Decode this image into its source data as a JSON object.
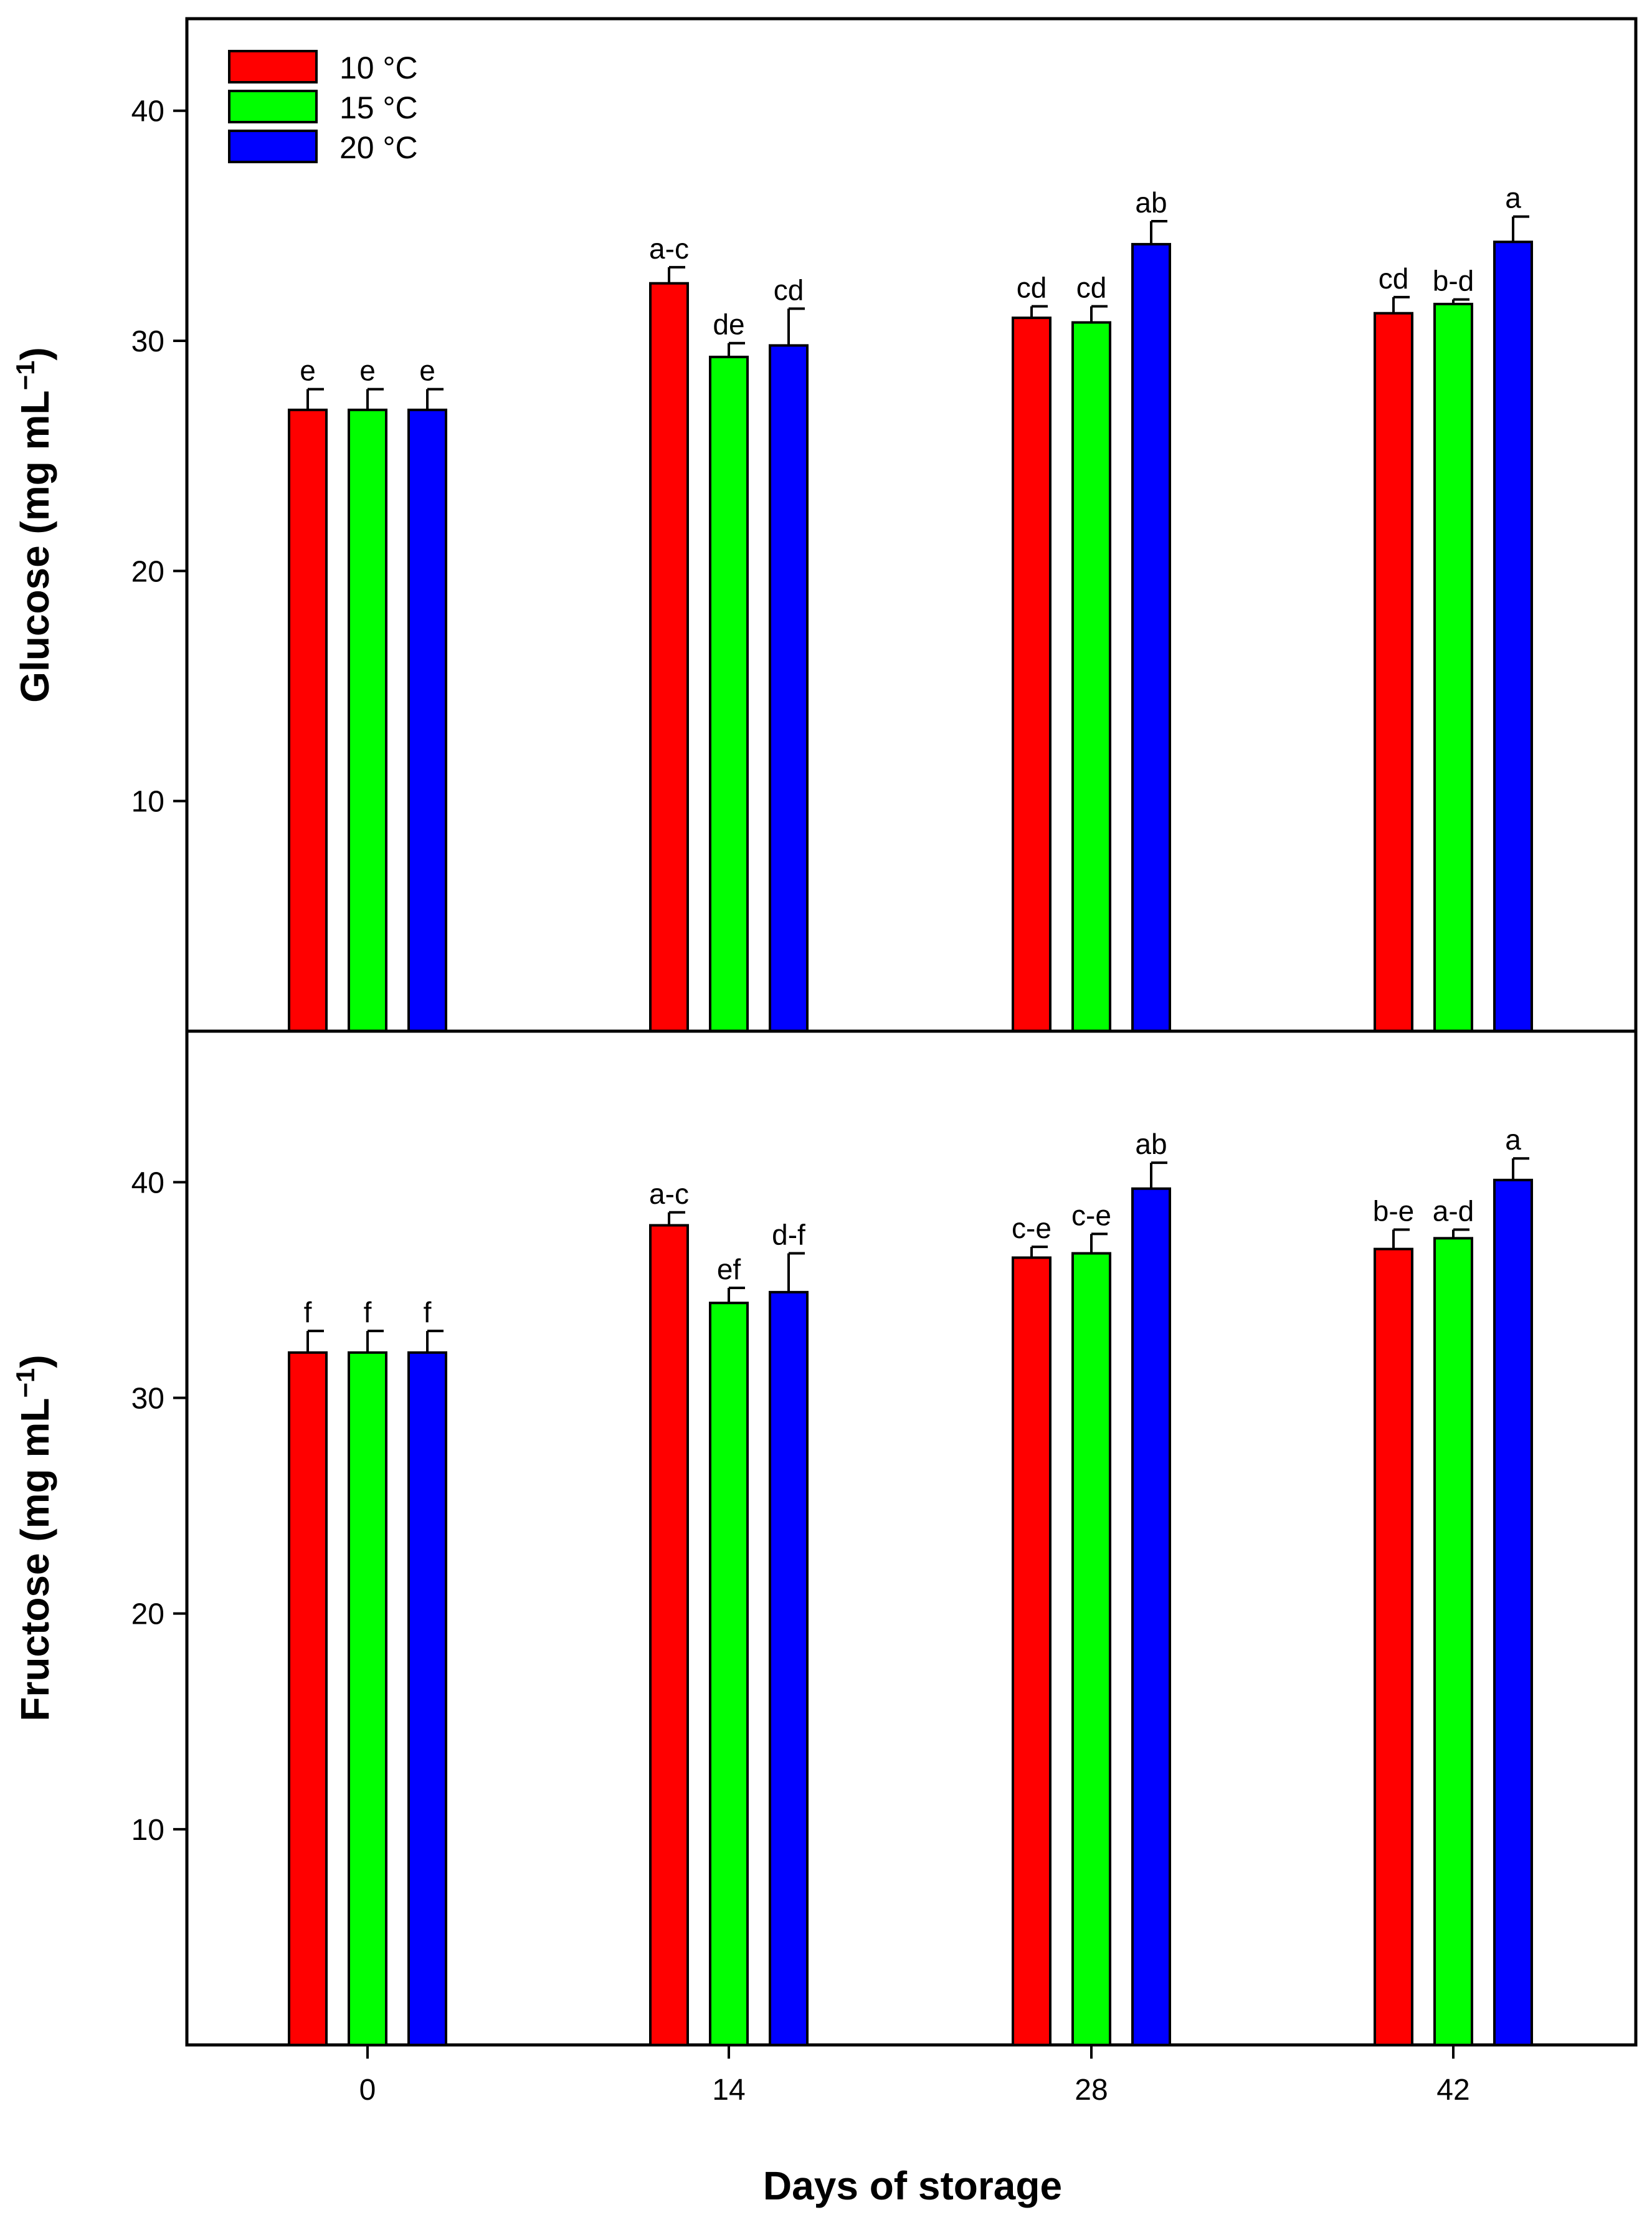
{
  "chart_data": [
    {
      "type": "bar",
      "panel": "top",
      "ylabel": "Glucose (mg mL",
      "ylabel_sup": "−1",
      "ylabel_close": ")",
      "ylim": [
        0,
        44
      ],
      "yticks": [
        10,
        20,
        30,
        40
      ],
      "categories": [
        "0",
        "14",
        "28",
        "42"
      ],
      "series": [
        {
          "name": "10 °C",
          "color": "#ff0000",
          "values": [
            27.0,
            32.5,
            31.0,
            31.2
          ],
          "errors": [
            0.9,
            0.7,
            0.5,
            0.7
          ],
          "letters": [
            "e",
            "a-c",
            "cd",
            "cd"
          ]
        },
        {
          "name": "15 °C",
          "color": "#00ff00",
          "values": [
            27.0,
            29.3,
            30.8,
            31.6
          ],
          "errors": [
            0.9,
            0.6,
            0.7,
            0.2
          ],
          "letters": [
            "e",
            "de",
            "cd",
            "b-d"
          ]
        },
        {
          "name": "20 °C",
          "color": "#0000ff",
          "values": [
            27.0,
            29.8,
            34.2,
            34.3
          ],
          "errors": [
            0.9,
            1.6,
            1.0,
            1.1
          ],
          "letters": [
            "e",
            "cd",
            "ab",
            "a"
          ]
        }
      ]
    },
    {
      "type": "bar",
      "panel": "bottom",
      "ylabel": "Fructose (mg mL",
      "ylabel_sup": "−1",
      "ylabel_close": ")",
      "ylim": [
        0,
        47
      ],
      "yticks": [
        10,
        20,
        30,
        40
      ],
      "categories": [
        "0",
        "14",
        "28",
        "42"
      ],
      "xlabel": "Days of storage",
      "series": [
        {
          "name": "10 °C",
          "color": "#ff0000",
          "values": [
            32.1,
            38.0,
            36.5,
            36.9
          ],
          "errors": [
            1.0,
            0.6,
            0.5,
            0.9
          ],
          "letters": [
            "f",
            "a-c",
            "c-e",
            "b-e"
          ]
        },
        {
          "name": "15 °C",
          "color": "#00ff00",
          "values": [
            32.1,
            34.4,
            36.7,
            37.4
          ],
          "errors": [
            1.0,
            0.7,
            0.9,
            0.4
          ],
          "letters": [
            "f",
            "ef",
            "c-e",
            "a-d"
          ]
        },
        {
          "name": "20 °C",
          "color": "#0000ff",
          "values": [
            32.1,
            34.9,
            39.7,
            40.1
          ],
          "errors": [
            1.0,
            1.8,
            1.2,
            1.0
          ],
          "letters": [
            "f",
            "d-f",
            "ab",
            "a"
          ]
        }
      ]
    }
  ],
  "legend": {
    "items": [
      {
        "label": "10 °C",
        "color": "#ff0000"
      },
      {
        "label": "15 °C",
        "color": "#00ff00"
      },
      {
        "label": "20 °C",
        "color": "#0000ff"
      }
    ]
  }
}
